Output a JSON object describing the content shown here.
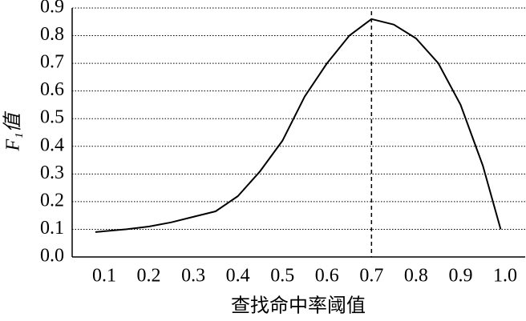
{
  "chart_data": {
    "type": "line",
    "x_label": "查找命中率阈值",
    "y_label": "F₁值",
    "x": [
      0.08,
      0.15,
      0.2,
      0.25,
      0.3,
      0.35,
      0.4,
      0.45,
      0.5,
      0.55,
      0.6,
      0.65,
      0.7,
      0.75,
      0.8,
      0.85,
      0.9,
      0.95,
      0.99
    ],
    "series": [
      {
        "color": "#000000",
        "values": [
          0.09,
          0.1,
          0.11,
          0.125,
          0.145,
          0.165,
          0.22,
          0.31,
          0.42,
          0.58,
          0.7,
          0.8,
          0.86,
          0.84,
          0.79,
          0.7,
          0.55,
          0.33,
          0.1
        ]
      }
    ],
    "vline": 0.7,
    "xlim": [
      0.028,
      1.045
    ],
    "ylim": [
      0,
      0.9
    ],
    "xticks": [
      0.1,
      0.2,
      0.3,
      0.4,
      0.5,
      0.6,
      0.7,
      0.8,
      0.9,
      {
        "value": 1,
        "label": "1.0"
      }
    ],
    "yticks": [
      {
        "value": 0,
        "label": "0.0"
      },
      0.1,
      0.2,
      0.3,
      0.4,
      0.5,
      0.6,
      0.7,
      0.8,
      0.9
    ],
    "grid": true
  }
}
